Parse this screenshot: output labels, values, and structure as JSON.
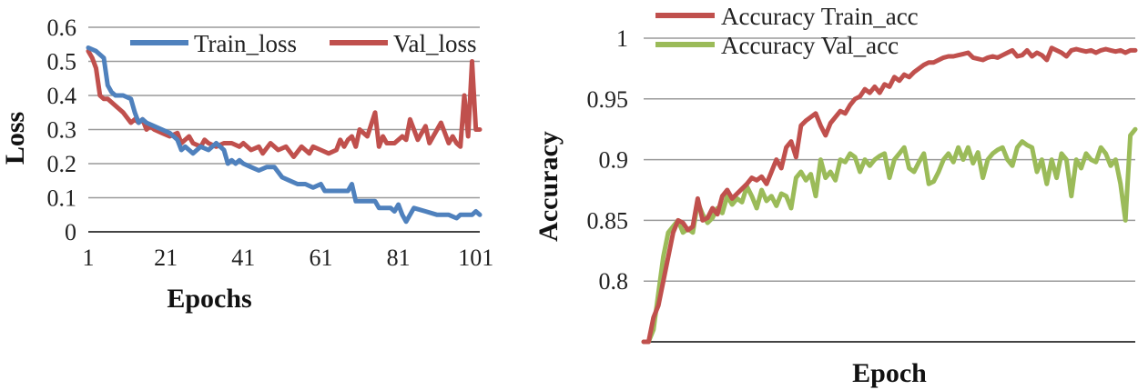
{
  "colors": {
    "train_loss": "#4F81BD",
    "val_loss": "#C0504D",
    "train_acc": "#C0504D",
    "val_acc": "#9BBB59"
  },
  "chart_data": [
    {
      "type": "line",
      "title": "",
      "xlabel": "Epochs",
      "ylabel": "Loss",
      "xlim": [
        1,
        102
      ],
      "ylim": [
        0,
        0.6
      ],
      "xticks": [
        "1",
        "21",
        "41",
        "61",
        "81",
        "101"
      ],
      "xtick_values": [
        1,
        21,
        41,
        61,
        81,
        101
      ],
      "yticks": [
        "0",
        "0.1",
        "0.2",
        "0.3",
        "0.4",
        "0.5",
        "0.6"
      ],
      "ytick_values": [
        0,
        0.1,
        0.2,
        0.3,
        0.4,
        0.5,
        0.6
      ],
      "grid": true,
      "legend": "top",
      "series": [
        {
          "name": "Train_loss",
          "x": [
            1,
            3,
            5,
            6,
            7,
            8,
            10,
            12,
            13,
            14,
            15,
            16,
            18,
            20,
            22,
            24,
            25,
            26,
            27,
            28,
            30,
            32,
            33,
            34,
            36,
            37,
            38,
            39,
            40,
            41,
            43,
            45,
            47,
            49,
            51,
            53,
            55,
            57,
            59,
            61,
            62,
            64,
            66,
            68,
            69,
            70,
            71,
            73,
            75,
            76,
            77,
            79,
            80,
            81,
            82,
            83,
            85,
            88,
            91,
            94,
            96,
            97,
            98,
            100,
            101,
            102
          ],
          "values": [
            0.54,
            0.53,
            0.51,
            0.43,
            0.41,
            0.4,
            0.4,
            0.39,
            0.35,
            0.32,
            0.33,
            0.32,
            0.31,
            0.3,
            0.29,
            0.27,
            0.24,
            0.25,
            0.24,
            0.23,
            0.25,
            0.24,
            0.25,
            0.26,
            0.24,
            0.2,
            0.21,
            0.2,
            0.21,
            0.2,
            0.19,
            0.18,
            0.19,
            0.19,
            0.16,
            0.15,
            0.14,
            0.14,
            0.13,
            0.14,
            0.12,
            0.12,
            0.12,
            0.12,
            0.14,
            0.09,
            0.09,
            0.09,
            0.09,
            0.07,
            0.07,
            0.07,
            0.06,
            0.08,
            0.05,
            0.03,
            0.07,
            0.06,
            0.05,
            0.05,
            0.04,
            0.05,
            0.05,
            0.05,
            0.06,
            0.05
          ]
        },
        {
          "name": "Val_loss",
          "x": [
            1,
            2,
            3,
            4,
            5,
            6,
            8,
            10,
            12,
            13,
            14,
            15,
            16,
            17,
            18,
            20,
            22,
            24,
            25,
            26,
            27,
            28,
            30,
            31,
            32,
            34,
            36,
            38,
            40,
            41,
            43,
            45,
            46,
            48,
            50,
            52,
            54,
            56,
            58,
            59,
            61,
            63,
            65,
            66,
            67,
            68,
            69,
            70,
            71,
            73,
            75,
            76,
            77,
            78,
            80,
            82,
            83,
            84,
            86,
            88,
            89,
            90,
            92,
            94,
            95,
            96,
            97,
            98,
            99,
            100,
            101,
            102
          ],
          "values": [
            0.53,
            0.51,
            0.48,
            0.4,
            0.39,
            0.39,
            0.37,
            0.35,
            0.32,
            0.33,
            0.32,
            0.33,
            0.3,
            0.31,
            0.3,
            0.29,
            0.28,
            0.29,
            0.26,
            0.27,
            0.28,
            0.26,
            0.25,
            0.27,
            0.26,
            0.25,
            0.26,
            0.26,
            0.25,
            0.26,
            0.24,
            0.25,
            0.23,
            0.26,
            0.24,
            0.25,
            0.22,
            0.25,
            0.23,
            0.25,
            0.24,
            0.23,
            0.24,
            0.27,
            0.25,
            0.27,
            0.28,
            0.25,
            0.3,
            0.28,
            0.35,
            0.25,
            0.28,
            0.26,
            0.26,
            0.28,
            0.27,
            0.33,
            0.27,
            0.31,
            0.26,
            0.28,
            0.32,
            0.26,
            0.28,
            0.26,
            0.25,
            0.4,
            0.28,
            0.5,
            0.3,
            0.3
          ]
        }
      ]
    },
    {
      "type": "line",
      "title": "",
      "xlabel": "Epoch",
      "ylabel": "Accuracy",
      "xlim": [
        0,
        100
      ],
      "ylim": [
        0.75,
        1
      ],
      "yticks": [
        "0.8",
        "0.85",
        "0.9",
        "0.95",
        "1"
      ],
      "ytick_values": [
        0.8,
        0.85,
        0.9,
        0.95,
        1.0
      ],
      "grid": true,
      "legend": "top",
      "series": [
        {
          "name": "Accuracy Train_acc",
          "x": [
            0,
            1,
            2,
            3,
            4,
            5,
            6,
            7,
            8,
            9,
            10,
            11,
            12,
            13,
            14,
            15,
            16,
            17,
            18,
            19,
            20,
            21,
            22,
            23,
            24,
            25,
            26,
            27,
            28,
            29,
            30,
            31,
            32,
            33,
            34,
            35,
            36,
            37,
            38,
            39,
            40,
            41,
            42,
            43,
            44,
            45,
            46,
            47,
            48,
            49,
            50,
            51,
            52,
            53,
            54,
            55,
            56,
            57,
            58,
            59,
            60,
            61,
            62,
            63,
            64,
            65,
            66,
            67,
            68,
            69,
            70,
            71,
            72,
            73,
            74,
            75,
            76,
            77,
            78,
            79,
            80,
            81,
            82,
            83,
            84,
            85,
            86,
            87,
            88,
            89,
            90,
            91,
            92,
            93,
            94,
            95,
            96,
            97,
            98,
            99,
            100
          ],
          "values": [
            0.75,
            0.75,
            0.77,
            0.78,
            0.8,
            0.82,
            0.84,
            0.85,
            0.848,
            0.842,
            0.845,
            0.868,
            0.85,
            0.852,
            0.86,
            0.855,
            0.87,
            0.875,
            0.868,
            0.872,
            0.876,
            0.88,
            0.885,
            0.883,
            0.886,
            0.88,
            0.89,
            0.9,
            0.893,
            0.91,
            0.915,
            0.902,
            0.928,
            0.932,
            0.935,
            0.938,
            0.928,
            0.92,
            0.93,
            0.935,
            0.94,
            0.938,
            0.945,
            0.95,
            0.952,
            0.958,
            0.955,
            0.96,
            0.955,
            0.962,
            0.96,
            0.968,
            0.965,
            0.97,
            0.968,
            0.972,
            0.975,
            0.978,
            0.98,
            0.98,
            0.982,
            0.984,
            0.985,
            0.985,
            0.986,
            0.987,
            0.988,
            0.984,
            0.983,
            0.982,
            0.984,
            0.985,
            0.984,
            0.986,
            0.988,
            0.99,
            0.985,
            0.986,
            0.99,
            0.985,
            0.988,
            0.986,
            0.982,
            0.992,
            0.99,
            0.988,
            0.985,
            0.99,
            0.991,
            0.99,
            0.989,
            0.99,
            0.988,
            0.99,
            0.991,
            0.99,
            0.989,
            0.99,
            0.988,
            0.99,
            0.99
          ]
        },
        {
          "name": "Accuracy Val_acc",
          "x": [
            0,
            1,
            2,
            3,
            4,
            5,
            6,
            7,
            8,
            9,
            10,
            11,
            12,
            13,
            14,
            15,
            16,
            17,
            18,
            19,
            20,
            21,
            22,
            23,
            24,
            25,
            26,
            27,
            28,
            29,
            30,
            31,
            32,
            33,
            34,
            35,
            36,
            37,
            38,
            39,
            40,
            41,
            42,
            43,
            44,
            45,
            46,
            47,
            48,
            49,
            50,
            51,
            52,
            53,
            54,
            55,
            56,
            57,
            58,
            59,
            60,
            61,
            62,
            63,
            64,
            65,
            66,
            67,
            68,
            69,
            70,
            71,
            72,
            73,
            74,
            75,
            76,
            77,
            78,
            79,
            80,
            81,
            82,
            83,
            84,
            85,
            86,
            87,
            88,
            89,
            90,
            91,
            92,
            93,
            94,
            95,
            96,
            97,
            98,
            99,
            100
          ],
          "values": [
            0.75,
            0.75,
            0.76,
            0.79,
            0.82,
            0.84,
            0.845,
            0.85,
            0.84,
            0.843,
            0.84,
            0.865,
            0.855,
            0.848,
            0.852,
            0.86,
            0.856,
            0.87,
            0.863,
            0.868,
            0.865,
            0.878,
            0.87,
            0.86,
            0.875,
            0.866,
            0.87,
            0.862,
            0.872,
            0.87,
            0.86,
            0.885,
            0.89,
            0.883,
            0.888,
            0.87,
            0.9,
            0.885,
            0.89,
            0.883,
            0.9,
            0.898,
            0.905,
            0.902,
            0.89,
            0.9,
            0.895,
            0.9,
            0.903,
            0.905,
            0.885,
            0.9,
            0.905,
            0.91,
            0.893,
            0.89,
            0.898,
            0.905,
            0.88,
            0.882,
            0.89,
            0.9,
            0.905,
            0.898,
            0.91,
            0.9,
            0.91,
            0.897,
            0.906,
            0.885,
            0.9,
            0.905,
            0.908,
            0.91,
            0.9,
            0.895,
            0.91,
            0.915,
            0.912,
            0.91,
            0.89,
            0.9,
            0.88,
            0.9,
            0.885,
            0.905,
            0.9,
            0.87,
            0.9,
            0.893,
            0.905,
            0.9,
            0.898,
            0.91,
            0.905,
            0.895,
            0.9,
            0.88,
            0.85,
            0.92,
            0.925
          ]
        }
      ]
    }
  ]
}
